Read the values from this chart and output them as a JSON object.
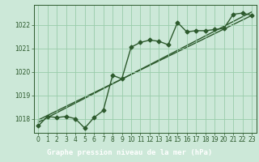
{
  "background_color": "#cce8d8",
  "plot_bg_color": "#cce8d8",
  "label_bg_color": "#3a7a3a",
  "grid_color": "#99ccaa",
  "line_color": "#2d5a2d",
  "xlabel": "Graphe pression niveau de la mer (hPa)",
  "xlim": [
    -0.5,
    23.5
  ],
  "ylim": [
    1017.4,
    1022.85
  ],
  "yticks": [
    1018,
    1019,
    1020,
    1021,
    1022
  ],
  "xtick_labels": [
    "0",
    "1",
    "2",
    "3",
    "4",
    "5",
    "6",
    "7",
    "8",
    "9",
    "10",
    "11",
    "12",
    "13",
    "14",
    "15",
    "16",
    "17",
    "18",
    "19",
    "20",
    "21",
    "22",
    "23"
  ],
  "series1_x": [
    0,
    1,
    2,
    3,
    4,
    5,
    6,
    7,
    8,
    9,
    10,
    11,
    12,
    13,
    14,
    15,
    16,
    17,
    18,
    19,
    20,
    21,
    22,
    23
  ],
  "series1_y": [
    1017.7,
    1018.1,
    1018.05,
    1018.1,
    1018.0,
    1017.6,
    1018.05,
    1018.35,
    1019.85,
    1019.7,
    1021.05,
    1021.25,
    1021.35,
    1021.3,
    1021.15,
    1022.1,
    1021.7,
    1021.75,
    1021.75,
    1021.8,
    1021.85,
    1022.45,
    1022.5,
    1022.4
  ],
  "series2_x": [
    0,
    23
  ],
  "series2_y": [
    1017.85,
    1022.55
  ],
  "series3_x": [
    0,
    23
  ],
  "series3_y": [
    1017.95,
    1022.4
  ],
  "marker": "D",
  "markersize": 2.5,
  "linewidth": 1.0,
  "tick_fontsize": 5.5,
  "label_fontsize": 6.5
}
